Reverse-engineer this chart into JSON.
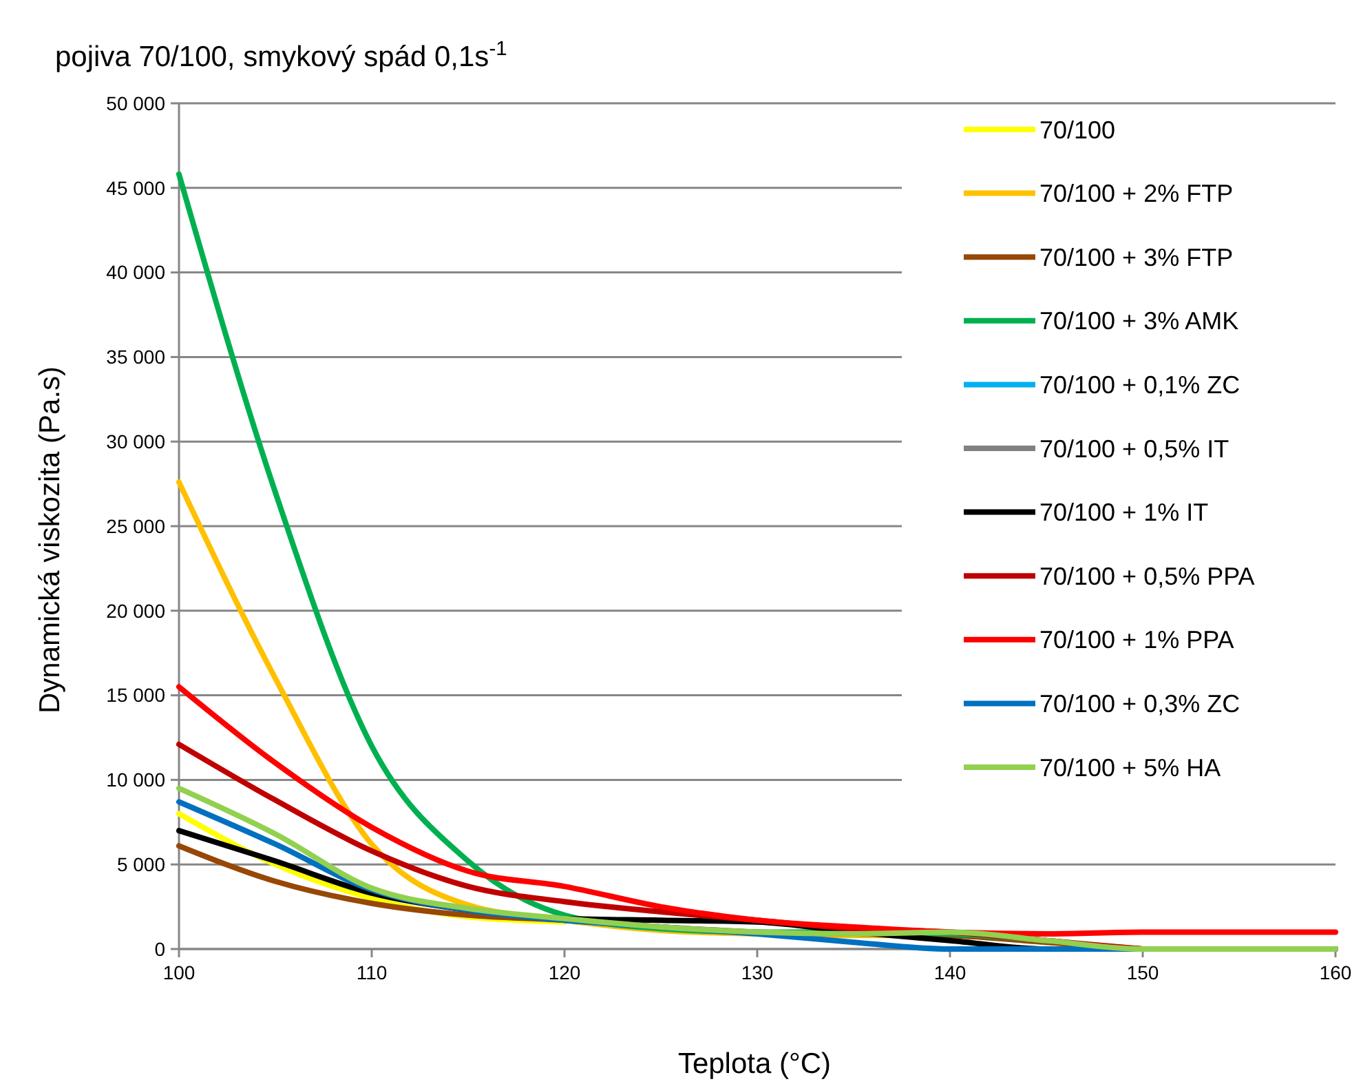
{
  "chart_data": {
    "type": "line",
    "title": "pojiva 70/100, smykový spád 0,1s$^{-1}$",
    "xlabel": "Teplota (°C)",
    "ylabel": "Dynamická viskozita (Pa.s)",
    "x": [
      100,
      105,
      110,
      115,
      120,
      125,
      130,
      135,
      140,
      145,
      150,
      155,
      160
    ],
    "xlim": [
      100,
      160
    ],
    "xticks": [
      100,
      110,
      120,
      130,
      140,
      150,
      160
    ],
    "ylim": [
      0,
      50000
    ],
    "yticks": [
      0,
      {
        "value": 5000,
        "label": "5 000"
      },
      {
        "value": 10000,
        "label": "10 000"
      },
      {
        "value": 15000,
        "label": "15 000"
      },
      {
        "value": 20000,
        "label": "20 000"
      },
      {
        "value": 25000,
        "label": "25 000"
      },
      {
        "value": 30000,
        "label": "30 000"
      },
      {
        "value": 35000,
        "label": "35 000"
      },
      {
        "value": 40000,
        "label": "40 000"
      },
      {
        "value": 45000,
        "label": "45 000"
      },
      {
        "value": 50000,
        "label": "50 000"
      }
    ],
    "grid": "y",
    "legend": "right",
    "marker": "none",
    "line_style": "solid",
    "series": [
      {
        "name": "70/100",
        "color": "#ffff00",
        "values": [
          8000,
          5000,
          3000,
          1900,
          1600,
          null,
          null,
          null,
          null,
          null,
          null,
          null,
          null
        ]
      },
      {
        "name": "70/100 + 2% FTP",
        "color": "#ffc000",
        "values": [
          27600,
          16000,
          6200,
          2600,
          1700,
          1100,
          900,
          800,
          800,
          400,
          0,
          null,
          null
        ]
      },
      {
        "name": "70/100 + 3% FTP",
        "color": "#974706",
        "values": [
          6100,
          4000,
          2700,
          2000,
          1700,
          1300,
          1000,
          900,
          800,
          400,
          0,
          null,
          null
        ]
      },
      {
        "name": "70/100 + 3% AMK",
        "color": "#00b050",
        "values": [
          45800,
          27000,
          12000,
          5200,
          2000,
          1200,
          1000,
          1000,
          900,
          500,
          0,
          0,
          0
        ]
      },
      {
        "name": "70/100 + 0,1% ZC",
        "color": "#00b0f0",
        "values": [
          null,
          null,
          null,
          null,
          null,
          null,
          null,
          null,
          null,
          null,
          null,
          null,
          null
        ]
      },
      {
        "name": "70/100 + 0,5% IT",
        "color": "#808080",
        "values": [
          null,
          null,
          null,
          null,
          null,
          null,
          null,
          null,
          null,
          null,
          null,
          null,
          null
        ]
      },
      {
        "name": "70/100 + 1% IT",
        "color": "#000000",
        "values": [
          7000,
          5200,
          3300,
          2300,
          1800,
          1700,
          1600,
          1000,
          500,
          0,
          0,
          0,
          0
        ]
      },
      {
        "name": "70/100 + 0,5% PPA",
        "color": "#c00000",
        "values": [
          12100,
          8800,
          5800,
          3700,
          2800,
          2200,
          1700,
          1200,
          1000,
          500,
          0,
          null,
          null
        ]
      },
      {
        "name": "70/100 + 1% PPA",
        "color": "#ff0000",
        "values": [
          15500,
          11000,
          7200,
          4600,
          3700,
          2500,
          1700,
          1300,
          1000,
          900,
          1000,
          1000,
          1000
        ]
      },
      {
        "name": "70/100 + 0,3% ZC",
        "color": "#0070c0",
        "values": [
          8700,
          6200,
          3500,
          2300,
          1700,
          1300,
          900,
          400,
          0,
          0,
          0,
          0,
          0
        ]
      },
      {
        "name": "70/100 + 5% HA",
        "color": "#92d050",
        "values": [
          9500,
          6800,
          3600,
          2400,
          1800,
          1300,
          1000,
          900,
          1000,
          500,
          0,
          0,
          0
        ]
      }
    ]
  }
}
